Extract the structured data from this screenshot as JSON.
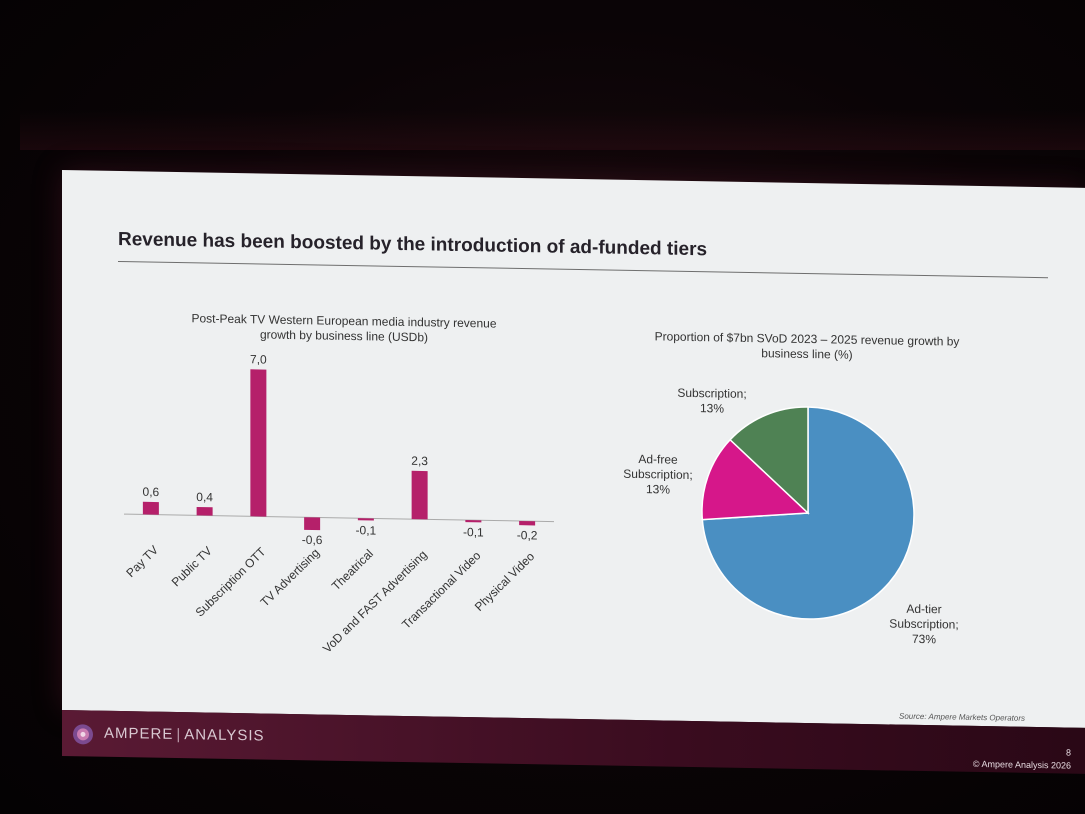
{
  "slide": {
    "title": "Revenue has been boosted by the introduction of ad-funded tiers",
    "source": "Source: Ampere Markets Operators",
    "page_number": "8",
    "copyright": "© Ampere Analysis 2026",
    "brand_left": "AMPERE",
    "brand_right": "ANALYSIS"
  },
  "colors": {
    "bar": "#b5206a",
    "pie_ad_tier": "#4a8fc2",
    "pie_ad_free": "#d6178a",
    "pie_subscription": "#4f8254",
    "footer": "#4a1429"
  },
  "chart_data": [
    {
      "type": "bar",
      "title_line1": "Post-Peak TV Western European media industry revenue",
      "title_line2": "growth by business line (USDb)",
      "categories": [
        "Pay TV",
        "Public TV",
        "Subscription OTT",
        "TV Advertising",
        "Theatrical",
        "VoD and FAST Advertising",
        "Transactional Video",
        "Physical Video"
      ],
      "values": [
        0.6,
        0.4,
        7.0,
        -0.6,
        -0.1,
        2.3,
        -0.1,
        -0.2
      ],
      "value_labels": [
        "0,6",
        "0,4",
        "7,0",
        "-0,6",
        "-0,1",
        "2,3",
        "-0,1",
        "-0,2"
      ],
      "ylim": [
        -1,
        7.5
      ],
      "grid": false
    },
    {
      "type": "pie",
      "title_line1": "Proportion of $7bn SVoD 2023 – 2025 revenue growth by",
      "title_line2": "business line (%)",
      "slices": [
        {
          "name": "Ad-tier Subscription",
          "value": 73,
          "label_lines": [
            "Ad-tier",
            "Subscription;",
            "73%"
          ]
        },
        {
          "name": "Ad-free Subscription",
          "value": 13,
          "label_lines": [
            "Ad-free",
            "Subscription;",
            "13%"
          ]
        },
        {
          "name": "Subscription",
          "value": 13,
          "label_lines": [
            "Subscription;",
            "13%"
          ]
        }
      ]
    }
  ]
}
